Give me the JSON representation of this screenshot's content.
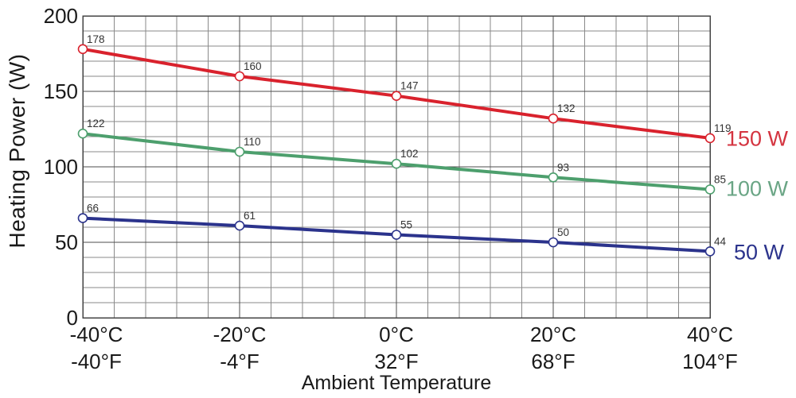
{
  "chart_data": {
    "type": "line",
    "title": "",
    "xlabel": "Ambient Temperature",
    "ylabel": "Heating Power (W)",
    "x_values": [
      -40,
      -20,
      0,
      20,
      40
    ],
    "x_tick_labels_celsius": [
      "-40°C",
      "-20°C",
      "0°C",
      "20°C",
      "40°C"
    ],
    "x_tick_labels_fahrenheit": [
      "-40°F",
      "-4°F",
      "32°F",
      "68°F",
      "104°F"
    ],
    "xlim": [
      -40,
      40
    ],
    "ylim": [
      0,
      200
    ],
    "y_ticks": [
      0,
      50,
      100,
      150,
      200
    ],
    "y_tick_labels": [
      "0",
      "50",
      "100",
      "150",
      "200"
    ],
    "y_minor_step": 10,
    "x_minor_divisions_per_major": 5,
    "grid": "on",
    "legend_position": "right-outside",
    "marker": {
      "shape": "open-circle",
      "fill": "#ffffff"
    },
    "data_label_color": "#333333",
    "series": [
      {
        "name": "150 W",
        "color": "#d9222d",
        "label_color": "#d43440",
        "values": [
          178,
          160,
          147,
          132,
          119
        ]
      },
      {
        "name": "100 W",
        "color": "#4d9f6d",
        "label_color": "#6aa585",
        "values": [
          122,
          110,
          102,
          93,
          85
        ]
      },
      {
        "name": "50 W",
        "color": "#2b338c",
        "label_color": "#2b338c",
        "values": [
          66,
          61,
          55,
          50,
          44
        ]
      }
    ]
  },
  "colors": {
    "grid_minor": "#8a8a8a",
    "grid_major": "#4c4c4c",
    "plot_border": "#444444",
    "text": "#1a1a1a"
  }
}
